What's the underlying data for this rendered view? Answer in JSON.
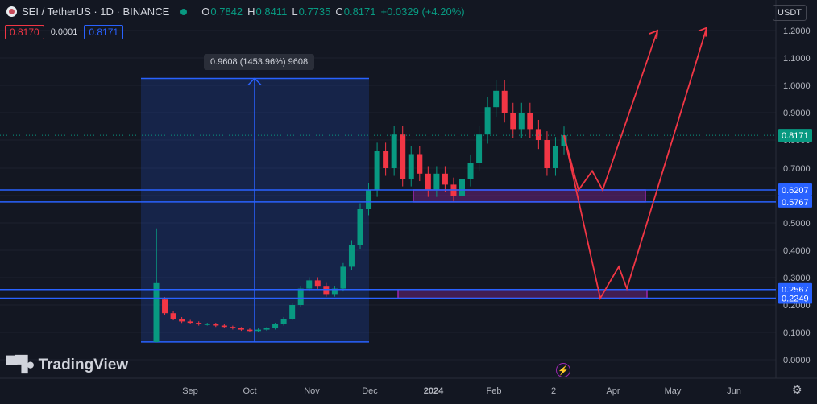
{
  "header": {
    "symbol": "SEI / TetherUS · 1D · BINANCE",
    "o_label": "O",
    "o": "0.7842",
    "h_label": "H",
    "h": "0.8411",
    "l_label": "L",
    "l": "0.7735",
    "c_label": "C",
    "c": "0.8171",
    "change": "+0.0329 (+4.20%)"
  },
  "order": {
    "sell": "0.8170",
    "spread": "0.0001",
    "buy": "0.8171"
  },
  "currency": "USDT",
  "measure_tooltip": "0.9608 (1453.96%) 9608",
  "brand": "TradingView",
  "colors": {
    "bg": "#131722",
    "up": "#089981",
    "down": "#f23645",
    "hline": "#2962ff",
    "zone": "#9c27b0",
    "projection": "#f23645"
  },
  "chart_data": {
    "type": "candlestick",
    "y_ticks": [
      "1.2000",
      "1.1000",
      "1.0000",
      "0.9000",
      "0.8000",
      "0.7000",
      "0.6000",
      "0.5000",
      "0.4000",
      "0.3000",
      "0.2000",
      "0.1000",
      "0.0000"
    ],
    "x_ticks": [
      "Sep",
      "Oct",
      "Nov",
      "Dec",
      "2024",
      "Feb",
      "2",
      "Apr",
      "May",
      "Jun"
    ],
    "last_price": "0.8171",
    "levels": [
      "0.6207",
      "0.5767",
      "0.2567",
      "0.2249"
    ],
    "level_values": [
      0.6207,
      0.5767,
      0.2567,
      0.2249
    ],
    "price_path": [
      [
        0.065,
        0.28
      ],
      [
        0.22,
        0.17
      ],
      [
        0.17,
        0.15
      ],
      [
        0.15,
        0.14
      ],
      [
        0.14,
        0.135
      ],
      [
        0.135,
        0.13
      ],
      [
        0.13,
        0.13
      ],
      [
        0.13,
        0.125
      ],
      [
        0.125,
        0.12
      ],
      [
        0.12,
        0.115
      ],
      [
        0.115,
        0.11
      ],
      [
        0.11,
        0.105
      ],
      [
        0.105,
        0.11
      ],
      [
        0.11,
        0.115
      ],
      [
        0.115,
        0.13
      ],
      [
        0.13,
        0.15
      ],
      [
        0.15,
        0.2
      ],
      [
        0.2,
        0.26
      ],
      [
        0.26,
        0.29
      ],
      [
        0.29,
        0.27
      ],
      [
        0.27,
        0.24
      ],
      [
        0.24,
        0.26
      ],
      [
        0.26,
        0.34
      ],
      [
        0.34,
        0.42
      ],
      [
        0.42,
        0.55
      ],
      [
        0.55,
        0.62
      ],
      [
        0.62,
        0.76
      ],
      [
        0.76,
        0.7
      ],
      [
        0.7,
        0.82
      ],
      [
        0.82,
        0.66
      ],
      [
        0.66,
        0.75
      ],
      [
        0.75,
        0.68
      ],
      [
        0.68,
        0.62
      ],
      [
        0.62,
        0.68
      ],
      [
        0.68,
        0.64
      ],
      [
        0.64,
        0.6
      ],
      [
        0.6,
        0.66
      ],
      [
        0.66,
        0.72
      ],
      [
        0.72,
        0.82
      ],
      [
        0.82,
        0.92
      ],
      [
        0.92,
        0.98
      ],
      [
        0.98,
        0.9
      ],
      [
        0.9,
        0.84
      ],
      [
        0.84,
        0.9
      ],
      [
        0.9,
        0.84
      ],
      [
        0.84,
        0.8
      ],
      [
        0.8,
        0.7
      ],
      [
        0.7,
        0.78
      ],
      [
        0.78,
        0.8171
      ]
    ],
    "measure": {
      "low": 0.065,
      "high": 1.025
    },
    "zones": [
      {
        "from_date": "Dec 2023",
        "to_date": "Mar 2024",
        "low": 0.5767,
        "high": 0.6207
      },
      {
        "from_date": "Dec 2023",
        "to_date": "Mar 2024",
        "low": 0.2249,
        "high": 0.2567
      }
    ],
    "projections": [
      {
        "points": [
          [
            0.8171,
            0
          ],
          [
            0.62,
            0
          ],
          [
            0.69,
            0
          ],
          [
            0.62,
            0
          ],
          [
            1.2,
            0
          ]
        ]
      },
      {
        "points": [
          [
            0.8171,
            0
          ],
          [
            0.2249,
            0
          ],
          [
            0.34,
            0
          ],
          [
            0.26,
            0
          ],
          [
            1.21,
            0
          ]
        ]
      }
    ]
  }
}
